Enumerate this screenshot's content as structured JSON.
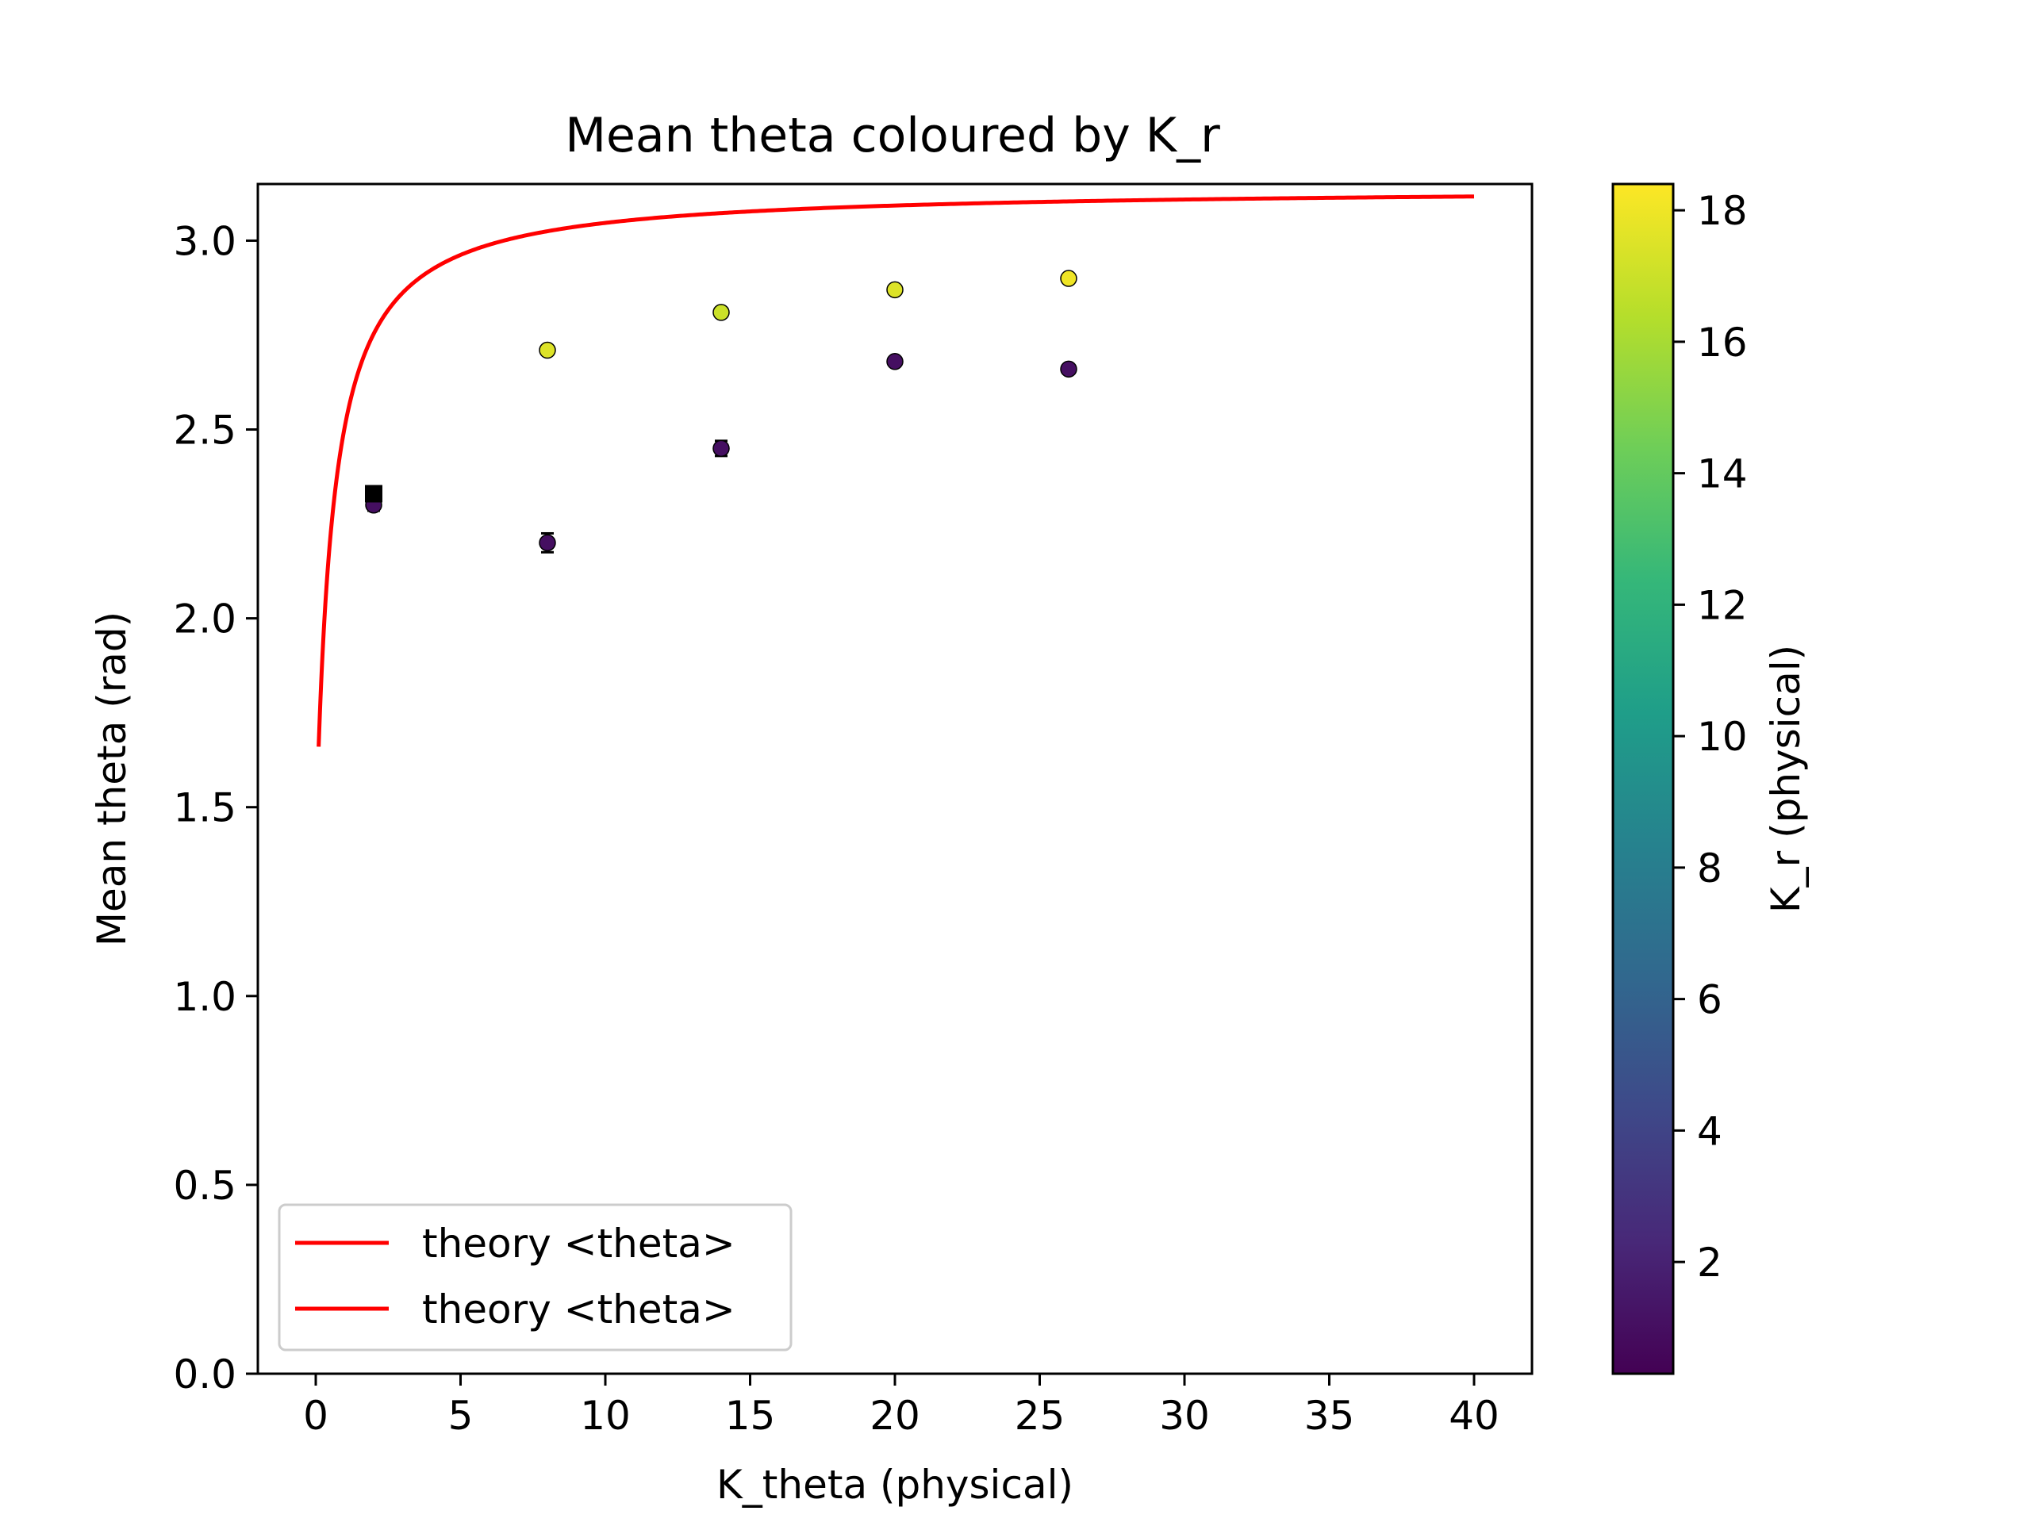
{
  "chart_data": {
    "type": "scatter",
    "title": "Mean theta coloured by K_r",
    "xlabel": "K_theta (physical)",
    "ylabel": "Mean theta (rad)",
    "xlim": [
      -2,
      42
    ],
    "ylim": [
      0.0,
      3.15
    ],
    "x_ticks": [
      0,
      5,
      10,
      15,
      20,
      25,
      30,
      35,
      40
    ],
    "x_tick_labels": [
      "0",
      "5",
      "10",
      "15",
      "20",
      "25",
      "30",
      "35",
      "40"
    ],
    "y_ticks": [
      0.0,
      0.5,
      1.0,
      1.5,
      2.0,
      2.5,
      3.0
    ],
    "y_tick_labels": [
      "0.0",
      "0.5",
      "1.0",
      "1.5",
      "2.0",
      "2.5",
      "3.0"
    ],
    "grid": false,
    "legend": {
      "placement": "lower-left",
      "entries": [
        {
          "label": "theory <theta>",
          "color": "#ff0000"
        },
        {
          "label": "theory <theta>",
          "color": "#ff0000"
        }
      ]
    },
    "theory_curve": {
      "name": "theory <theta>",
      "color": "#ff0000",
      "x_range": [
        0.1,
        40
      ],
      "note_formula": "pi - 1/K"
    },
    "points": [
      {
        "x": 2,
        "y": 2.3,
        "yerr": 0.015,
        "k_r": 1.0
      },
      {
        "x": 2,
        "y": 2.33,
        "yerr": 0.015,
        "k_r": 18.0
      },
      {
        "x": 8,
        "y": 2.2,
        "yerr": 0.025,
        "k_r": 1.0
      },
      {
        "x": 8,
        "y": 2.71,
        "yerr": 0.012,
        "k_r": 17.5
      },
      {
        "x": 14,
        "y": 2.45,
        "yerr": 0.02,
        "k_r": 1.0
      },
      {
        "x": 14,
        "y": 2.81,
        "yerr": 0.012,
        "k_r": 17.0
      },
      {
        "x": 20,
        "y": 2.68,
        "yerr": 0.012,
        "k_r": 1.0
      },
      {
        "x": 20,
        "y": 2.87,
        "yerr": 0.008,
        "k_r": 17.5
      },
      {
        "x": 26,
        "y": 2.66,
        "yerr": 0.012,
        "k_r": 1.0
      },
      {
        "x": 26,
        "y": 2.9,
        "yerr": 0.008,
        "k_r": 18.0
      }
    ],
    "colorbar": {
      "label": "K_r (physical)",
      "colormap": "viridis",
      "range": [
        0.3,
        18.4
      ],
      "ticks": [
        2,
        4,
        6,
        8,
        10,
        12,
        14,
        16,
        18
      ],
      "tick_labels": [
        "2",
        "4",
        "6",
        "8",
        "10",
        "12",
        "14",
        "16",
        "18"
      ],
      "stops": [
        "#440154",
        "#482878",
        "#3e4989",
        "#31688e",
        "#26828e",
        "#1f9e89",
        "#35b779",
        "#6ece58",
        "#b5de2b",
        "#fde725"
      ]
    }
  }
}
